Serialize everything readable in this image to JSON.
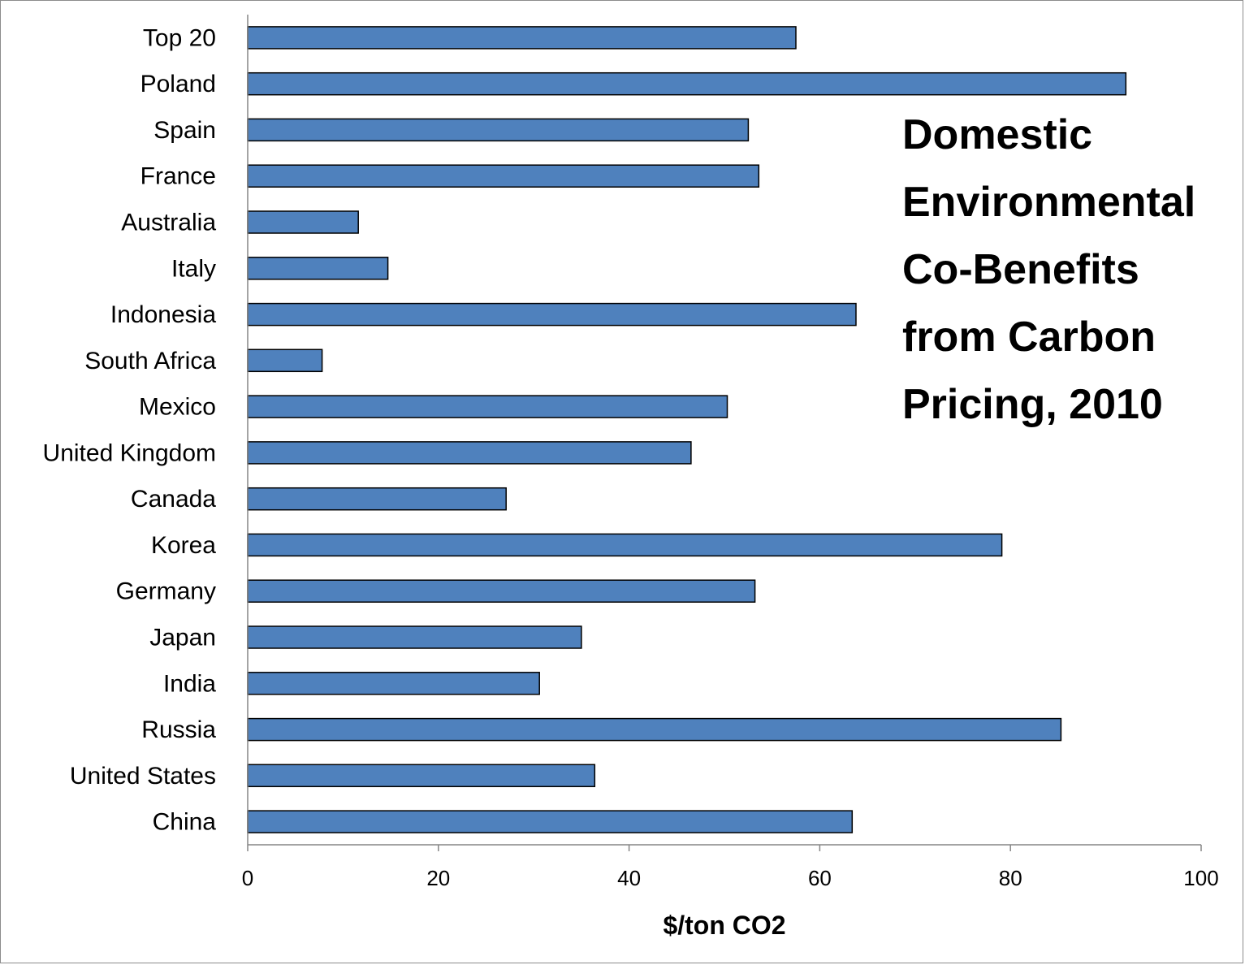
{
  "chart_data": {
    "type": "bar",
    "orientation": "horizontal",
    "title_lines": [
      "Domestic",
      "Environmental",
      "Co-Benefits",
      "from Carbon",
      "Pricing, 2010"
    ],
    "xlabel": "$/ton CO2",
    "ylabel": "",
    "xlim": [
      0,
      100
    ],
    "x_ticks": [
      "0",
      "20",
      "40",
      "60",
      "80",
      "100"
    ],
    "categories": [
      "Top 20",
      "Poland",
      "Spain",
      "France",
      "Australia",
      "Italy",
      "Indonesia",
      "South Africa",
      "Mexico",
      "United Kingdom",
      "Canada",
      "Korea",
      "Germany",
      "Japan",
      "India",
      "Russia",
      "United States",
      "China"
    ],
    "values": [
      57.5,
      92.1,
      52.5,
      53.6,
      11.6,
      14.7,
      63.8,
      7.8,
      50.3,
      46.5,
      27.1,
      79.1,
      53.2,
      35.0,
      30.6,
      85.3,
      36.4,
      63.4
    ],
    "bar_color": "#4f81bd",
    "grid": false,
    "legend": "none"
  }
}
